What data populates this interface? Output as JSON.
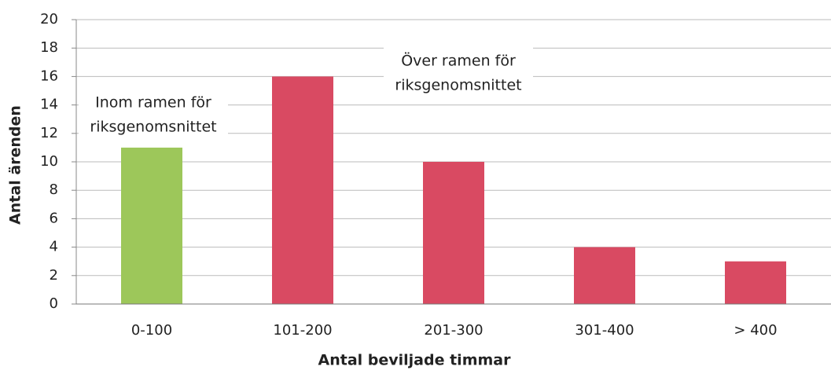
{
  "chart_data": {
    "type": "bar",
    "categories": [
      "0-100",
      "101-200",
      "201-300",
      "301-400",
      "> 400"
    ],
    "values": [
      11,
      16,
      10,
      4,
      3
    ],
    "colors": [
      "#9dc75a",
      "#d94a62",
      "#d94a62",
      "#d94a62",
      "#d94a62"
    ],
    "xlabel": "Antal beviljade timmar",
    "ylabel": "Antal ärenden",
    "ylim": [
      0,
      20
    ],
    "yticks": [
      0,
      2,
      4,
      6,
      8,
      10,
      12,
      14,
      16,
      18,
      20
    ],
    "grid": true,
    "annotations": [
      {
        "lines": [
          "Inom ramen för",
          "riksgenomsnittet"
        ]
      },
      {
        "lines": [
          "Över ramen för",
          "riksgenomsnittet"
        ]
      }
    ]
  }
}
